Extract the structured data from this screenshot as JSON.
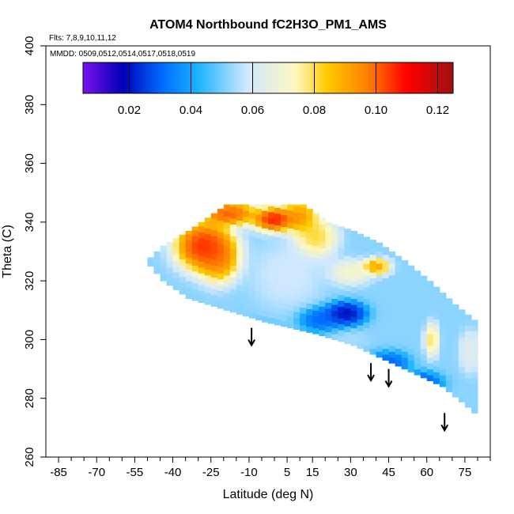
{
  "chart_data": {
    "type": "heatmap",
    "title": "ATOM4 Northbound fC2H3O_PM1_AMS",
    "annotations": {
      "flights": "Flts: 7,8,9,10,11,12",
      "dates": "MMDD: 0509,0512,0514,0517,0518,0519"
    },
    "xlabel": "Latitude (deg N)",
    "ylabel": "Theta (C)",
    "xlim": [
      -90,
      85
    ],
    "ylim": [
      260,
      400
    ],
    "x_ticks": [
      -85,
      -70,
      -55,
      -40,
      -25,
      -10,
      5,
      15,
      30,
      45,
      60,
      75
    ],
    "x_minor_ticks": [
      -80,
      -75,
      -65,
      -60,
      -50,
      -45,
      -35,
      -30,
      -20,
      -15,
      -5,
      0,
      10,
      20,
      25,
      35,
      40,
      50,
      55,
      65,
      70,
      80,
      85
    ],
    "y_ticks": [
      260,
      280,
      300,
      320,
      340,
      360,
      380,
      400
    ],
    "colorbar": {
      "min": 0.005,
      "max": 0.125,
      "ticks": [
        0.02,
        0.04,
        0.06,
        0.08,
        0.1,
        0.12
      ],
      "tick_labels": [
        "0.02",
        "0.04",
        "0.06",
        "0.08",
        "0.10",
        "0.12"
      ],
      "stops": [
        {
          "v": 0.005,
          "color": "#7a12f0"
        },
        {
          "v": 0.018,
          "color": "#0000b8"
        },
        {
          "v": 0.03,
          "color": "#0066ff"
        },
        {
          "v": 0.042,
          "color": "#19b2ff"
        },
        {
          "v": 0.058,
          "color": "#cfe8ff"
        },
        {
          "v": 0.074,
          "color": "#fff8c0"
        },
        {
          "v": 0.084,
          "color": "#ffcc00"
        },
        {
          "v": 0.098,
          "color": "#ff7a00"
        },
        {
          "v": 0.11,
          "color": "#ff0000"
        },
        {
          "v": 0.125,
          "color": "#a01010"
        }
      ]
    },
    "field": {
      "lat_step": 2.5,
      "theta_step": 2,
      "lower_bound": [
        [
          -50,
          325
        ],
        [
          -45,
          320
        ],
        [
          -35,
          314
        ],
        [
          -20,
          310
        ],
        [
          -5,
          306
        ],
        [
          15,
          302
        ],
        [
          30,
          298
        ],
        [
          45,
          292
        ],
        [
          55,
          288
        ],
        [
          65,
          284
        ],
        [
          75,
          277
        ],
        [
          80,
          273
        ]
      ],
      "upper_bound": [
        [
          -50,
          328
        ],
        [
          -45,
          332
        ],
        [
          -35,
          337
        ],
        [
          -25,
          343
        ],
        [
          -20,
          346
        ],
        [
          10,
          346
        ],
        [
          20,
          340
        ],
        [
          30,
          337
        ],
        [
          40,
          333
        ],
        [
          50,
          327
        ],
        [
          60,
          320
        ],
        [
          70,
          312
        ],
        [
          80,
          305
        ]
      ],
      "base_value": 0.052,
      "features": [
        {
          "lat": -28,
          "theta": 332,
          "value": 0.118,
          "r_lat": 8,
          "r_theta": 6
        },
        {
          "lat": -22,
          "theta": 328,
          "value": 0.105,
          "r_lat": 6,
          "r_theta": 6
        },
        {
          "lat": -18,
          "theta": 343,
          "value": 0.112,
          "r_lat": 8,
          "r_theta": 3
        },
        {
          "lat": 0,
          "theta": 341,
          "value": 0.12,
          "r_lat": 6,
          "r_theta": 3
        },
        {
          "lat": 10,
          "theta": 342,
          "value": 0.102,
          "r_lat": 5,
          "r_theta": 4
        },
        {
          "lat": 16,
          "theta": 335,
          "value": 0.088,
          "r_lat": 6,
          "r_theta": 5
        },
        {
          "lat": 40,
          "theta": 325,
          "value": 0.1,
          "r_lat": 4,
          "r_theta": 2
        },
        {
          "lat": 30,
          "theta": 323,
          "value": 0.075,
          "r_lat": 6,
          "r_theta": 3
        },
        {
          "lat": 28,
          "theta": 309,
          "value": 0.012,
          "r_lat": 6,
          "r_theta": 3
        },
        {
          "lat": 18,
          "theta": 307,
          "value": 0.026,
          "r_lat": 6,
          "r_theta": 3
        },
        {
          "lat": 58,
          "theta": 285,
          "value": 0.022,
          "r_lat": 6,
          "r_theta": 3
        },
        {
          "lat": 45,
          "theta": 292,
          "value": 0.025,
          "r_lat": 6,
          "r_theta": 3
        },
        {
          "lat": 62,
          "theta": 300,
          "value": 0.085,
          "r_lat": 2,
          "r_theta": 4
        },
        {
          "lat": 77,
          "theta": 296,
          "value": 0.066,
          "r_lat": 3,
          "r_theta": 5
        },
        {
          "lat": 30,
          "theta": 300,
          "value": 0.055,
          "r_lat": 5,
          "r_theta": 2
        },
        {
          "lat": 5,
          "theta": 322,
          "value": 0.06,
          "r_lat": 10,
          "r_theta": 8
        },
        {
          "lat": -10,
          "theta": 300,
          "value": 0.03,
          "r_lat": 10,
          "r_theta": 4
        }
      ]
    },
    "arrows": [
      {
        "lat": -9,
        "theta": 304
      },
      {
        "lat": 38,
        "theta": 292
      },
      {
        "lat": 45,
        "theta": 290
      },
      {
        "lat": 67,
        "theta": 275
      }
    ]
  }
}
